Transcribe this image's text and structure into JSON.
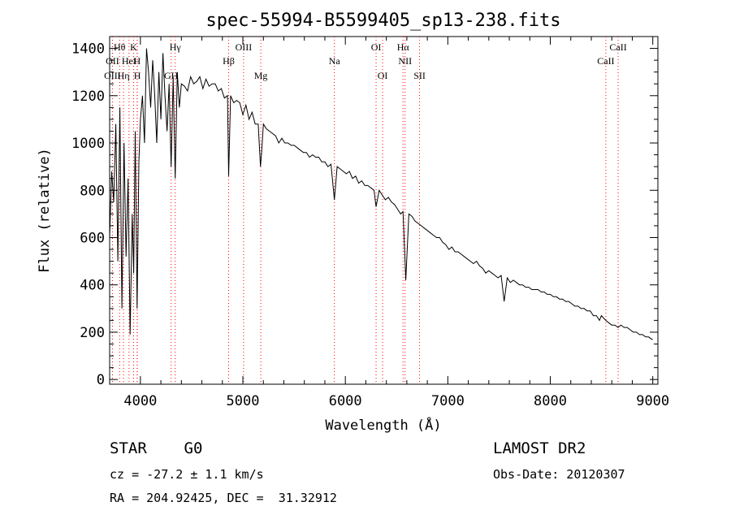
{
  "chart_data": {
    "type": "line",
    "title": "spec-55994-B5599405_sp13-238.fits",
    "xlabel": "Wavelength (Å)",
    "ylabel": "Flux (relative)",
    "xlim": [
      3700,
      9050
    ],
    "ylim": [
      -20,
      1450
    ],
    "xticks": [
      4000,
      5000,
      6000,
      7000,
      8000,
      9000
    ],
    "yticks": [
      0,
      200,
      400,
      600,
      800,
      1000,
      1200,
      1400
    ],
    "grid": false,
    "line_color": "#000000",
    "marker_color": "#ff0000",
    "series": [
      {
        "x": [
          3700,
          3720,
          3740,
          3760,
          3780,
          3800,
          3820,
          3840,
          3860,
          3880,
          3900,
          3920,
          3935,
          3950,
          3968,
          3985,
          4000,
          4020,
          4040,
          4060,
          4080,
          4100,
          4120,
          4140,
          4160,
          4180,
          4200,
          4220,
          4240,
          4260,
          4280,
          4300,
          4320,
          4340,
          4360,
          4380,
          4400,
          4430,
          4460,
          4490,
          4520,
          4550,
          4580,
          4610,
          4640,
          4670,
          4700,
          4730,
          4760,
          4790,
          4820,
          4850,
          4861,
          4880,
          4910,
          4940,
          4970,
          5000,
          5030,
          5060,
          5090,
          5120,
          5150,
          5172,
          5183,
          5200,
          5230,
          5260,
          5290,
          5320,
          5350,
          5380,
          5410,
          5440,
          5470,
          5500,
          5530,
          5560,
          5590,
          5620,
          5650,
          5680,
          5710,
          5740,
          5770,
          5800,
          5830,
          5860,
          5893,
          5920,
          5950,
          5980,
          6010,
          6040,
          6070,
          6100,
          6130,
          6160,
          6190,
          6220,
          6250,
          6280,
          6300,
          6330,
          6360,
          6390,
          6420,
          6450,
          6480,
          6510,
          6540,
          6563,
          6590,
          6620,
          6650,
          6680,
          6710,
          6740,
          6770,
          6800,
          6830,
          6860,
          6890,
          6920,
          6950,
          6980,
          7010,
          7040,
          7070,
          7100,
          7130,
          7160,
          7190,
          7220,
          7250,
          7280,
          7310,
          7340,
          7370,
          7400,
          7430,
          7460,
          7490,
          7520,
          7550,
          7580,
          7610,
          7640,
          7670,
          7700,
          7730,
          7760,
          7790,
          7820,
          7850,
          7880,
          7910,
          7940,
          7970,
          8000,
          8030,
          8060,
          8090,
          8120,
          8150,
          8180,
          8210,
          8240,
          8270,
          8300,
          8330,
          8360,
          8390,
          8420,
          8450,
          8480,
          8498,
          8520,
          8542,
          8570,
          8600,
          8630,
          8662,
          8690,
          8720,
          8750,
          8780,
          8810,
          8840,
          8870,
          8900,
          8930,
          8960,
          8990,
          9000
        ],
        "y": [
          600,
          880,
          750,
          1080,
          500,
          1150,
          300,
          1000,
          520,
          850,
          190,
          700,
          450,
          1050,
          300,
          920,
          1100,
          1200,
          1000,
          1400,
          1300,
          1150,
          1350,
          1200,
          1000,
          1300,
          1100,
          1380,
          1200,
          1050,
          1250,
          900,
          1280,
          850,
          1300,
          1150,
          1250,
          1240,
          1220,
          1280,
          1250,
          1260,
          1280,
          1230,
          1270,
          1240,
          1250,
          1250,
          1220,
          1230,
          1190,
          1200,
          860,
          1200,
          1170,
          1180,
          1170,
          1120,
          1160,
          1100,
          1130,
          1080,
          1080,
          900,
          960,
          1080,
          1060,
          1050,
          1040,
          1030,
          1000,
          1020,
          1000,
          1000,
          990,
          990,
          980,
          970,
          960,
          960,
          940,
          950,
          940,
          940,
          920,
          920,
          900,
          910,
          760,
          900,
          890,
          880,
          870,
          880,
          850,
          860,
          830,
          840,
          820,
          820,
          810,
          800,
          730,
          800,
          780,
          760,
          770,
          750,
          740,
          720,
          700,
          710,
          420,
          700,
          690,
          670,
          660,
          650,
          640,
          630,
          620,
          610,
          600,
          600,
          580,
          570,
          550,
          560,
          540,
          540,
          530,
          520,
          510,
          500,
          490,
          500,
          480,
          470,
          450,
          460,
          450,
          440,
          430,
          440,
          330,
          430,
          410,
          420,
          410,
          400,
          400,
          390,
          390,
          380,
          380,
          380,
          370,
          370,
          360,
          360,
          350,
          350,
          340,
          340,
          330,
          330,
          320,
          310,
          310,
          300,
          300,
          290,
          290,
          270,
          270,
          250,
          270,
          260,
          250,
          240,
          230,
          230,
          220,
          230,
          220,
          220,
          210,
          200,
          200,
          190,
          190,
          180,
          180,
          170,
          170
        ]
      }
    ],
    "line_markers": [
      {
        "label": "Hθ",
        "x": 3797,
        "row": 1
      },
      {
        "label": "K",
        "x": 3934,
        "row": 1
      },
      {
        "label": "Hγ",
        "x": 4340,
        "row": 1
      },
      {
        "label": "OIII",
        "x": 5007,
        "row": 1
      },
      {
        "label": "OI",
        "x": 6300,
        "row": 1
      },
      {
        "label": "Hα",
        "x": 6563,
        "row": 1
      },
      {
        "label": "CaII",
        "x": 8662,
        "row": 1
      },
      {
        "label": "OII",
        "x": 3727,
        "row": 2
      },
      {
        "label": "HeI",
        "x": 3889,
        "row": 2
      },
      {
        "label": "H",
        "x": 3968,
        "row": 2
      },
      {
        "label": "Hβ",
        "x": 4861,
        "row": 2
      },
      {
        "label": "Na",
        "x": 5893,
        "row": 2
      },
      {
        "label": "NII",
        "x": 6583,
        "row": 2
      },
      {
        "label": "CaII",
        "x": 8542,
        "row": 2
      },
      {
        "label": "OIII",
        "x": 3727,
        "row": 3
      },
      {
        "label": "Hη",
        "x": 3835,
        "row": 3
      },
      {
        "label": "H",
        "x": 3970,
        "row": 3
      },
      {
        "label": "GH",
        "x": 4300,
        "row": 3
      },
      {
        "label": "Mg",
        "x": 5175,
        "row": 3
      },
      {
        "label": "OI",
        "x": 6364,
        "row": 3
      },
      {
        "label": "SII",
        "x": 6724,
        "row": 3
      }
    ]
  },
  "info": {
    "classification": "STAR    G0",
    "survey": "LAMOST DR2",
    "velocity": "cz = -27.2 ± 1.1 km/s",
    "obs_date": "Obs-Date: 20120307",
    "coords": "RA = 204.92425, DEC =  31.32912"
  }
}
